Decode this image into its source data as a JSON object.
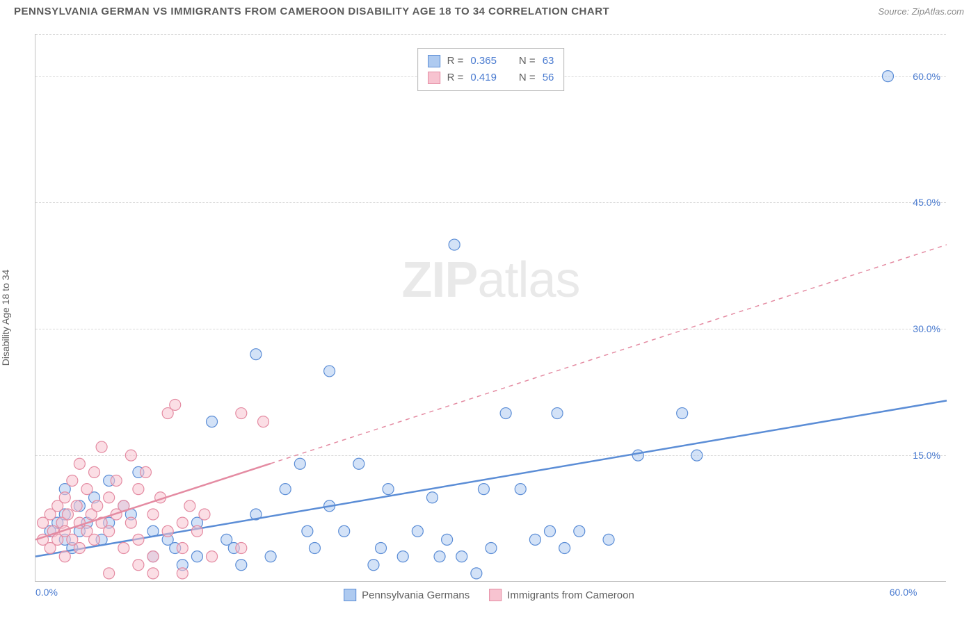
{
  "header": {
    "title": "PENNSYLVANIA GERMAN VS IMMIGRANTS FROM CAMEROON DISABILITY AGE 18 TO 34 CORRELATION CHART",
    "source": "Source: ZipAtlas.com"
  },
  "watermark": {
    "zip": "ZIP",
    "atlas": "atlas"
  },
  "ylabel": "Disability Age 18 to 34",
  "chart": {
    "type": "scatter",
    "background_color": "#ffffff",
    "grid_color": "#d8d8d8",
    "axis_color": "#c0c0c0",
    "tick_color": "#4a7bd0",
    "label_fontsize": 14,
    "title_fontsize": 15,
    "xlim": [
      0,
      62
    ],
    "ylim": [
      0,
      65
    ],
    "yticks": [
      15,
      30,
      45,
      60
    ],
    "ytick_labels": [
      "15.0%",
      "30.0%",
      "45.0%",
      "60.0%"
    ],
    "xticks": [
      0,
      60
    ],
    "xtick_labels": [
      "0.0%",
      "60.0%"
    ],
    "marker_radius": 8,
    "marker_opacity": 0.55,
    "trend_line_width": 2.5,
    "series": [
      {
        "name": "Pennsylvania Germans",
        "color": "#5b8dd6",
        "fill": "#aecaf0",
        "stroke": "#5b8dd6",
        "R": "0.365",
        "N": "63",
        "trend": {
          "x1": 0,
          "y1": 3.0,
          "x2": 62,
          "y2": 21.5,
          "dash_from_x": null
        },
        "points": [
          [
            1,
            6
          ],
          [
            1.5,
            7
          ],
          [
            2,
            5
          ],
          [
            2,
            8
          ],
          [
            2.5,
            4
          ],
          [
            3,
            9
          ],
          [
            3,
            6
          ],
          [
            3.5,
            7
          ],
          [
            4,
            10
          ],
          [
            4.5,
            5
          ],
          [
            5,
            12
          ],
          [
            5,
            7
          ],
          [
            6,
            9
          ],
          [
            6.5,
            8
          ],
          [
            7,
            13
          ],
          [
            8,
            6
          ],
          [
            8,
            3
          ],
          [
            9,
            5
          ],
          [
            9.5,
            4
          ],
          [
            10,
            2
          ],
          [
            11,
            7
          ],
          [
            11,
            3
          ],
          [
            12,
            19
          ],
          [
            13,
            5
          ],
          [
            13.5,
            4
          ],
          [
            14,
            2
          ],
          [
            15,
            8
          ],
          [
            15,
            27
          ],
          [
            16,
            3
          ],
          [
            17,
            11
          ],
          [
            18,
            14
          ],
          [
            18.5,
            6
          ],
          [
            19,
            4
          ],
          [
            20,
            25
          ],
          [
            20,
            9
          ],
          [
            21,
            6
          ],
          [
            22,
            14
          ],
          [
            23,
            2
          ],
          [
            23.5,
            4
          ],
          [
            24,
            11
          ],
          [
            25,
            3
          ],
          [
            26,
            6
          ],
          [
            27,
            10
          ],
          [
            27.5,
            3
          ],
          [
            28,
            5
          ],
          [
            28.5,
            40
          ],
          [
            29,
            3
          ],
          [
            30,
            1
          ],
          [
            30.5,
            11
          ],
          [
            31,
            4
          ],
          [
            32,
            20
          ],
          [
            33,
            11
          ],
          [
            34,
            5
          ],
          [
            35,
            6
          ],
          [
            35.5,
            20
          ],
          [
            36,
            4
          ],
          [
            37,
            6
          ],
          [
            39,
            5
          ],
          [
            41,
            15
          ],
          [
            44,
            20
          ],
          [
            45,
            15
          ],
          [
            58,
            60
          ],
          [
            2,
            11
          ]
        ]
      },
      {
        "name": "Immigrants from Cameroon",
        "color": "#e48ba2",
        "fill": "#f7c3d0",
        "stroke": "#e48ba2",
        "R": "0.419",
        "N": "56",
        "trend": {
          "x1": 0,
          "y1": 5.0,
          "x2": 62,
          "y2": 40.0,
          "dash_from_x": 16
        },
        "points": [
          [
            0.5,
            5
          ],
          [
            0.5,
            7
          ],
          [
            1,
            4
          ],
          [
            1,
            8
          ],
          [
            1.2,
            6
          ],
          [
            1.5,
            9
          ],
          [
            1.5,
            5
          ],
          [
            1.8,
            7
          ],
          [
            2,
            10
          ],
          [
            2,
            6
          ],
          [
            2,
            3
          ],
          [
            2.2,
            8
          ],
          [
            2.5,
            12
          ],
          [
            2.5,
            5
          ],
          [
            2.8,
            9
          ],
          [
            3,
            7
          ],
          [
            3,
            14
          ],
          [
            3,
            4
          ],
          [
            3.5,
            11
          ],
          [
            3.5,
            6
          ],
          [
            3.8,
            8
          ],
          [
            4,
            13
          ],
          [
            4,
            5
          ],
          [
            4.2,
            9
          ],
          [
            4.5,
            7
          ],
          [
            4.5,
            16
          ],
          [
            5,
            10
          ],
          [
            5,
            6
          ],
          [
            5.5,
            8
          ],
          [
            5.5,
            12
          ],
          [
            6,
            4
          ],
          [
            6,
            9
          ],
          [
            6.5,
            15
          ],
          [
            6.5,
            7
          ],
          [
            7,
            11
          ],
          [
            7,
            5
          ],
          [
            7.5,
            13
          ],
          [
            8,
            8
          ],
          [
            8,
            3
          ],
          [
            8.5,
            10
          ],
          [
            9,
            20
          ],
          [
            9,
            6
          ],
          [
            9.5,
            21
          ],
          [
            10,
            7
          ],
          [
            10,
            4
          ],
          [
            10.5,
            9
          ],
          [
            11,
            6
          ],
          [
            11.5,
            8
          ],
          [
            12,
            3
          ],
          [
            10,
            1
          ],
          [
            8,
            1
          ],
          [
            7,
            2
          ],
          [
            14,
            20
          ],
          [
            14,
            4
          ],
          [
            15.5,
            19
          ],
          [
            5,
            1
          ]
        ]
      }
    ]
  },
  "bottom_legend": {
    "items": [
      {
        "label": "Pennsylvania Germans",
        "fill": "#aecaf0",
        "stroke": "#5b8dd6"
      },
      {
        "label": "Immigrants from Cameroon",
        "fill": "#f7c3d0",
        "stroke": "#e48ba2"
      }
    ]
  }
}
